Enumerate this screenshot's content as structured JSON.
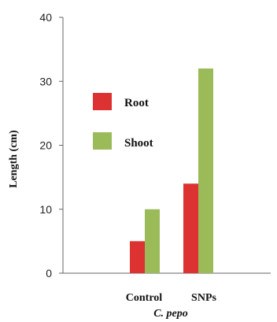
{
  "chart_data": {
    "type": "bar",
    "categories": [
      "Control",
      "SNPs"
    ],
    "series": [
      {
        "name": "Root",
        "values": [
          5,
          14
        ],
        "color": "#dc3232"
      },
      {
        "name": "Shoot",
        "values": [
          10,
          32
        ],
        "color": "#9bbb59"
      }
    ],
    "xlabel": "C. pepo",
    "ylabel": "Length (cm)",
    "ylim": [
      0,
      40
    ],
    "yticks": [
      0,
      10,
      20,
      30,
      40
    ],
    "grid": false,
    "legend_position": "top-left"
  }
}
